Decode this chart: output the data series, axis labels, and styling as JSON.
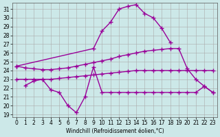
{
  "bg_color": "#cce8e8",
  "line_color": "#990099",
  "grid_color": "#aaaaaa",
  "ylim": [
    18.7,
    31.7
  ],
  "yticks": [
    19,
    20,
    21,
    22,
    23,
    24,
    25,
    26,
    27,
    28,
    29,
    30,
    31
  ],
  "xticks": [
    0,
    1,
    2,
    3,
    4,
    5,
    6,
    7,
    8,
    9,
    10,
    11,
    12,
    13,
    14,
    15,
    16,
    17,
    18,
    19,
    20,
    21,
    22,
    23
  ],
  "xlabel": "Windchill (Refroidissement éolien,°C)",
  "sA_x": [
    0,
    9,
    10,
    11,
    12,
    13,
    14,
    15,
    16,
    17,
    18
  ],
  "sA_y": [
    24.5,
    26.5,
    28.5,
    29.5,
    31.0,
    31.3,
    31.5,
    30.5,
    30.0,
    28.8,
    27.2
  ],
  "sB_x": [
    0,
    1,
    2,
    3,
    4,
    5,
    6,
    7,
    8,
    9,
    10,
    11,
    12,
    13,
    14,
    15,
    16,
    17,
    18,
    19,
    20,
    21,
    22,
    23
  ],
  "sB_y": [
    24.5,
    24.3,
    24.2,
    24.1,
    24.1,
    24.2,
    24.3,
    24.5,
    24.7,
    24.9,
    25.1,
    25.3,
    25.6,
    25.8,
    26.0,
    26.2,
    26.3,
    26.4,
    26.5,
    26.5,
    24.2,
    23.0,
    22.2,
    21.5
  ],
  "sC_x": [
    0,
    1,
    2,
    3,
    4,
    5,
    6,
    7,
    8,
    9,
    10,
    11,
    12,
    13,
    14,
    15,
    16,
    17,
    18,
    19,
    20,
    21,
    22,
    23
  ],
  "sC_y": [
    23.0,
    23.0,
    23.0,
    23.0,
    23.0,
    23.1,
    23.2,
    23.3,
    23.4,
    23.5,
    23.6,
    23.7,
    23.8,
    23.9,
    24.0,
    24.0,
    24.0,
    24.0,
    24.0,
    24.0,
    24.0,
    24.0,
    24.0,
    24.0
  ],
  "sD_x": [
    1,
    2,
    3,
    4,
    5,
    6,
    7,
    8,
    9,
    10,
    11,
    12,
    13,
    14,
    15,
    16,
    17,
    18,
    19,
    20,
    21,
    22,
    23
  ],
  "sD_y": [
    22.3,
    22.8,
    23.0,
    21.8,
    21.5,
    20.0,
    19.2,
    21.0,
    24.4,
    21.5,
    21.5,
    21.5,
    21.5,
    21.5,
    21.5,
    21.5,
    21.5,
    21.5,
    21.5,
    21.5,
    21.5,
    22.2,
    21.5
  ]
}
